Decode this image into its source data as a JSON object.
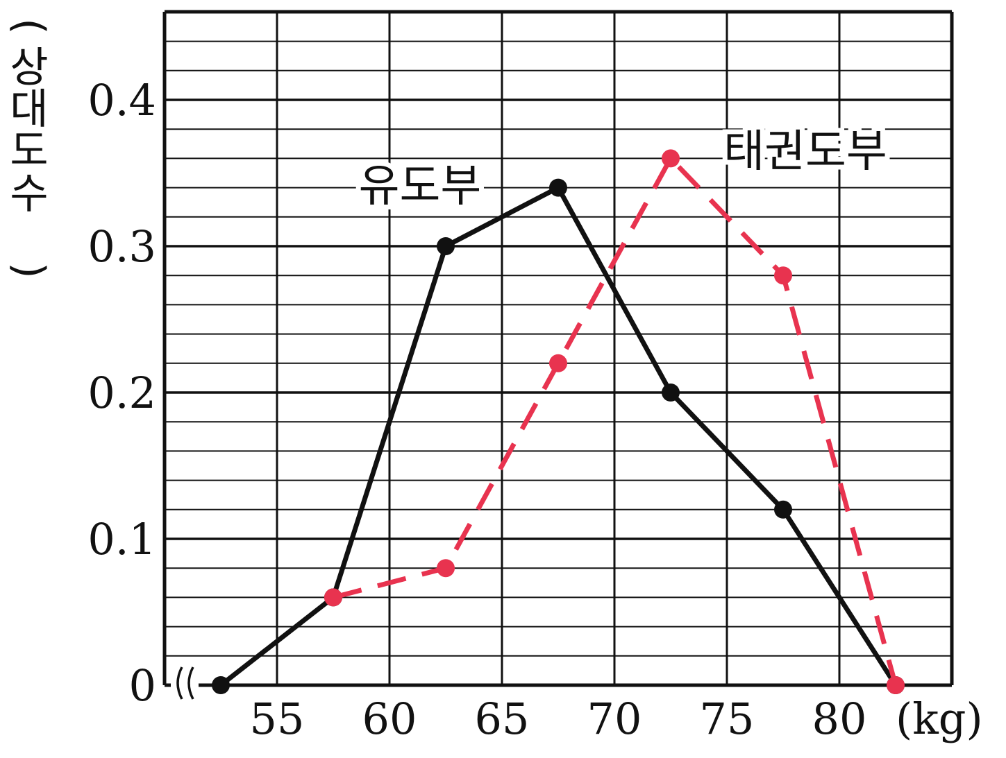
{
  "chart_data": {
    "type": "line",
    "xlabel_unit": "(kg)",
    "ylabel": [
      "(",
      "상",
      "대",
      "도",
      "수",
      ")"
    ],
    "x_ticks": [
      "55",
      "60",
      "65",
      "70",
      "75",
      "80"
    ],
    "y_ticks": [
      "0",
      "0.1",
      "0.2",
      "0.3",
      "0.4"
    ],
    "xlim": [
      50,
      85
    ],
    "ylim": [
      0,
      0.46
    ],
    "grid": true,
    "axis_break": true,
    "series": [
      {
        "name": "유도부",
        "color": "#111111",
        "style": "solid",
        "x": [
          52.5,
          57.5,
          62.5,
          67.5,
          72.5,
          77.5,
          82.5
        ],
        "y": [
          0,
          0.06,
          0.3,
          0.34,
          0.2,
          0.12,
          0
        ]
      },
      {
        "name": "태권도부",
        "color": "#E8334F",
        "style": "dashed",
        "x": [
          57.5,
          62.5,
          67.5,
          72.5,
          77.5,
          82.5
        ],
        "y": [
          0.06,
          0.08,
          0.22,
          0.36,
          0.28,
          0
        ]
      }
    ]
  }
}
